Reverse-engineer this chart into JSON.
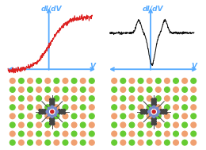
{
  "bg_color": "#ffffff",
  "arrow_color": "#55aaff",
  "label_color": "#55aaff",
  "curve1_color": "#dd2222",
  "curve2_color": "#111111",
  "dot_colors": {
    "G": "#66cc33",
    "P": "#f0a070"
  },
  "grid_pattern": [
    [
      "G",
      "P",
      "G",
      "P",
      "G",
      "P",
      "G",
      "P",
      "G",
      "P"
    ],
    [
      "P",
      "G",
      "P",
      "G",
      "P",
      "G",
      "P",
      "G",
      "P",
      "G"
    ],
    [
      "G",
      "P",
      "G",
      "P",
      "G",
      "P",
      "G",
      "P",
      "G",
      "P"
    ],
    [
      "P",
      "G",
      "P",
      "G",
      "P",
      "G",
      "P",
      "G",
      "P",
      "G"
    ],
    [
      "G",
      "P",
      "G",
      "P",
      "G",
      "P",
      "G",
      "P",
      "G",
      "P"
    ],
    [
      "P",
      "G",
      "P",
      "G",
      "P",
      "G",
      "P",
      "G",
      "P",
      "G"
    ],
    [
      "G",
      "P",
      "G",
      "P",
      "G",
      "P",
      "G",
      "P",
      "G",
      "P"
    ],
    [
      "P",
      "G",
      "P",
      "G",
      "P",
      "G",
      "P",
      "G",
      "P",
      "G"
    ]
  ],
  "mol_dark": "#444444",
  "mol_blue": "#7788cc",
  "mol_red": "#cc2222",
  "mol_gray": "#888888",
  "title": "dI/dV",
  "xlabel": "V"
}
